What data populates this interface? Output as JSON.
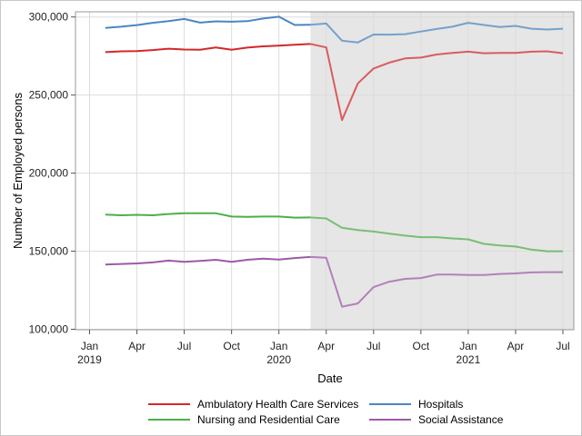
{
  "chart_data": {
    "type": "line",
    "xlabel": "Date",
    "ylabel": "Number of Employed persons",
    "ylim": [
      100000,
      300000
    ],
    "y_ticks": [
      {
        "value": 100000,
        "label": "100,000"
      },
      {
        "value": 150000,
        "label": "150,000"
      },
      {
        "value": 200000,
        "label": "200,000"
      },
      {
        "value": 250000,
        "label": "250,000"
      },
      {
        "value": 300000,
        "label": "300,000"
      }
    ],
    "x_ticks": [
      {
        "index": 0,
        "label": "Jan",
        "year": "2019"
      },
      {
        "index": 3,
        "label": "Apr",
        "year": ""
      },
      {
        "index": 6,
        "label": "Jul",
        "year": ""
      },
      {
        "index": 9,
        "label": "Oct",
        "year": ""
      },
      {
        "index": 12,
        "label": "Jan",
        "year": "2020"
      },
      {
        "index": 15,
        "label": "Apr",
        "year": ""
      },
      {
        "index": 18,
        "label": "Jul",
        "year": ""
      },
      {
        "index": 21,
        "label": "Oct",
        "year": ""
      },
      {
        "index": 24,
        "label": "Jan",
        "year": "2021"
      },
      {
        "index": 27,
        "label": "Apr",
        "year": ""
      },
      {
        "index": 30,
        "label": "Jul",
        "year": ""
      }
    ],
    "x": [
      "2019-02",
      "2019-03",
      "2019-04",
      "2019-05",
      "2019-06",
      "2019-07",
      "2019-08",
      "2019-09",
      "2019-10",
      "2019-11",
      "2019-12",
      "2020-01",
      "2020-02",
      "2020-03",
      "2020-04",
      "2020-05",
      "2020-06",
      "2020-07",
      "2020-08",
      "2020-09",
      "2020-10",
      "2020-11",
      "2020-12",
      "2021-01",
      "2021-02",
      "2021-03",
      "2021-04",
      "2021-05",
      "2021-06",
      "2021-07"
    ],
    "shaded_region": {
      "from": "2020-03",
      "to": "2021-07"
    },
    "grid": true,
    "legend_position": "bottom",
    "series": [
      {
        "name": "Ambulatory Health Care Services",
        "color": "#d62728",
        "values": [
          277500,
          278000,
          278200,
          278800,
          279700,
          279200,
          279000,
          280500,
          279000,
          280400,
          281200,
          281700,
          282200,
          282700,
          280500,
          234000,
          257500,
          267000,
          270800,
          273500,
          274000,
          276000,
          277000,
          277800,
          276800,
          277000,
          277000,
          277800,
          278000,
          276800
        ]
      },
      {
        "name": "Hospitals",
        "color": "#4a86c0",
        "values": [
          293000,
          293800,
          294800,
          296300,
          297300,
          298700,
          296400,
          297200,
          297000,
          297300,
          299000,
          300200,
          294900,
          295000,
          295800,
          284800,
          283700,
          288800,
          288700,
          289000,
          290700,
          292300,
          293800,
          296300,
          294900,
          293600,
          294300,
          292500,
          292000,
          292500
        ]
      },
      {
        "name": "Nursing and Residential Care",
        "color": "#4daf4a",
        "values": [
          173500,
          173000,
          173300,
          173000,
          173800,
          174300,
          174300,
          174300,
          172200,
          172000,
          172200,
          172200,
          171500,
          171600,
          171000,
          165000,
          163600,
          162600,
          161200,
          160000,
          159000,
          159000,
          158200,
          157600,
          154700,
          153700,
          153000,
          151000,
          150000,
          150000
        ]
      },
      {
        "name": "Social Assistance",
        "color": "#9e59a8",
        "values": [
          141400,
          141800,
          142200,
          142800,
          144000,
          143200,
          143800,
          144500,
          143200,
          144500,
          145200,
          144600,
          145600,
          146300,
          145800,
          114500,
          116500,
          127000,
          130500,
          132300,
          132800,
          135000,
          135000,
          134800,
          134800,
          135400,
          135800,
          136400,
          136600,
          136600
        ]
      }
    ]
  }
}
